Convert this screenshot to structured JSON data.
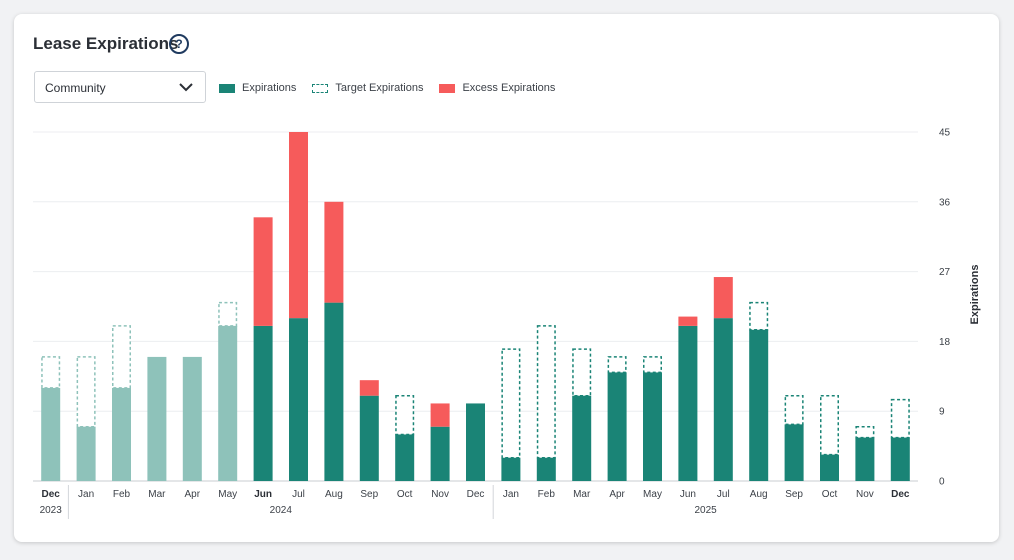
{
  "header": {
    "title": "Lease Expirations",
    "help_glyph": "?"
  },
  "filter": {
    "selected": "Community"
  },
  "legend": {
    "expirations": "Expirations",
    "target": "Target Expirations",
    "excess": "Excess Expirations"
  },
  "colors": {
    "actual": "#1a8476",
    "past": "#8ec2ba",
    "excess": "#f65b5b",
    "target_outline": "#1a8476",
    "target_outline_past": "#8ec2ba"
  },
  "chart_data": {
    "type": "bar",
    "ylabel": "Expirations",
    "ylim": [
      0,
      45
    ],
    "yticks": [
      0,
      9,
      18,
      27,
      36,
      45
    ],
    "y_axis_position": "right",
    "grid": true,
    "legend_position": "top-left",
    "categories": [
      "Dec",
      "Jan",
      "Feb",
      "Mar",
      "Apr",
      "May",
      "Jun",
      "Jul",
      "Aug",
      "Sep",
      "Oct",
      "Nov",
      "Dec",
      "Jan",
      "Feb",
      "Mar",
      "Apr",
      "May",
      "Jun",
      "Jul",
      "Aug",
      "Sep",
      "Oct",
      "Nov",
      "Dec"
    ],
    "bold_labels": [
      0,
      6,
      24
    ],
    "years": [
      {
        "label": "2023",
        "start": 0,
        "end": 0
      },
      {
        "label": "2024",
        "start": 1,
        "end": 12
      },
      {
        "label": "2025",
        "start": 13,
        "end": 24
      }
    ],
    "past_until_index": 5,
    "series": [
      {
        "name": "Expirations",
        "values": [
          12,
          7,
          12,
          16,
          16,
          20,
          20,
          21,
          23,
          11,
          6,
          7,
          10,
          3,
          3,
          11,
          14,
          14,
          20,
          21,
          19.5,
          7.3,
          3.4,
          5.6,
          5.6
        ]
      },
      {
        "name": "Target Expirations",
        "values": [
          16,
          16,
          20,
          null,
          null,
          23,
          null,
          null,
          null,
          null,
          11,
          null,
          null,
          17,
          20,
          17,
          16,
          16,
          null,
          null,
          23,
          11,
          11,
          7,
          10.5
        ]
      },
      {
        "name": "Excess Expirations",
        "values": [
          0,
          0,
          0,
          0,
          0,
          0,
          14,
          24,
          13,
          2,
          0,
          3,
          0,
          0,
          0,
          0,
          0,
          0,
          1.2,
          5.3,
          0,
          0,
          0,
          0,
          0
        ]
      }
    ]
  }
}
